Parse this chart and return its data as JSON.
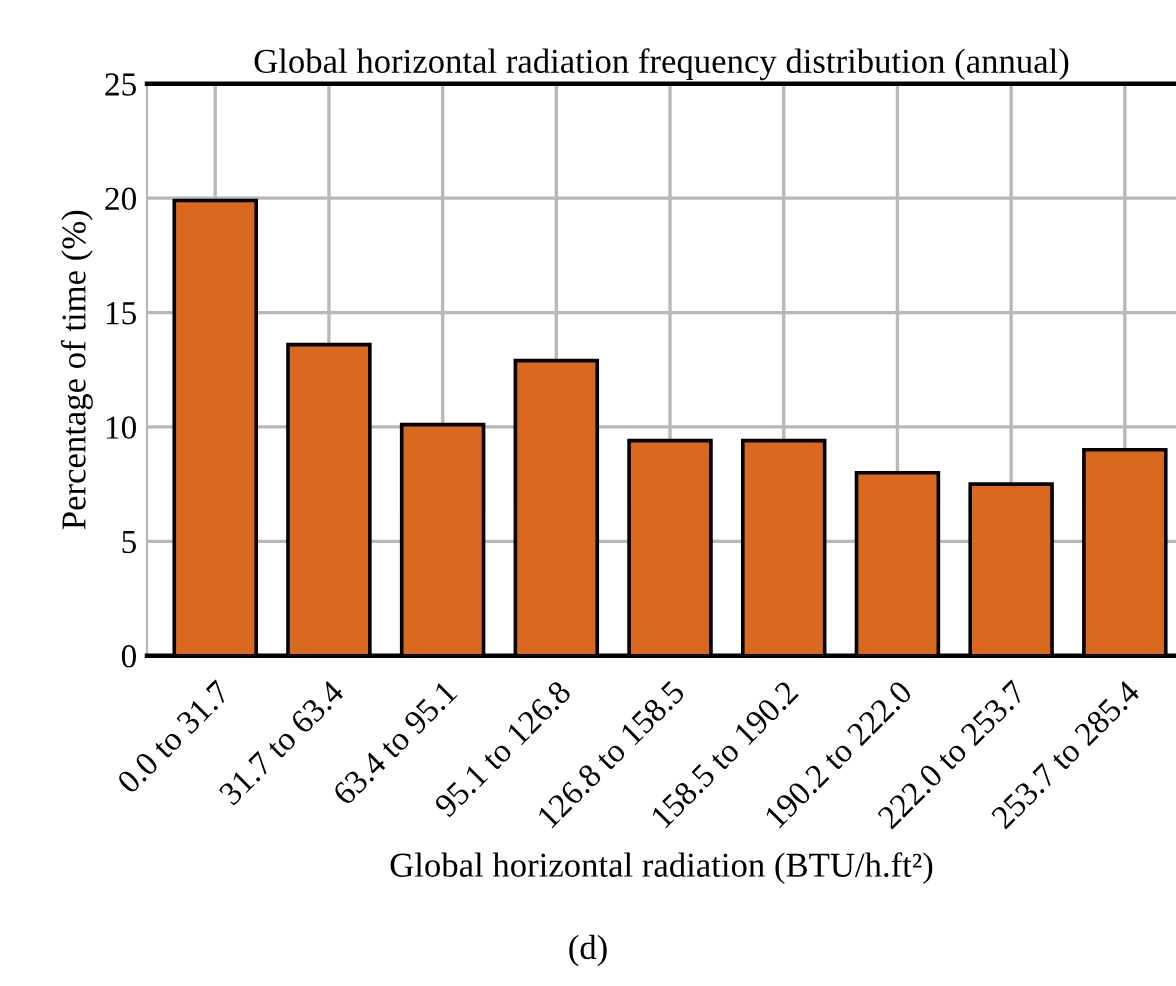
{
  "chart_data": {
    "type": "bar",
    "title": "Global horizontal radiation frequency distribution (annual)",
    "xlabel": "Global horizontal radiation (BTU/h.ft²)",
    "ylabel": "Percentage of time (%)",
    "categories": [
      "0.0 to 31.7",
      "31.7 to 63.4",
      "63.4 to 95.1",
      "95.1 to 126.8",
      "126.8 to 158.5",
      "158.5 to 190.2",
      "190.2 to 222.0",
      "222.0 to 253.7",
      "253.7 to 285.4"
    ],
    "values": [
      19.9,
      13.6,
      10.1,
      12.9,
      9.4,
      9.4,
      8.0,
      7.5,
      9.0
    ],
    "color": "#d9691f",
    "ylim": [
      0,
      25
    ],
    "yticks": [
      0,
      5,
      10,
      15,
      20,
      25
    ],
    "grid": true,
    "annotations": [
      "(d)"
    ]
  }
}
